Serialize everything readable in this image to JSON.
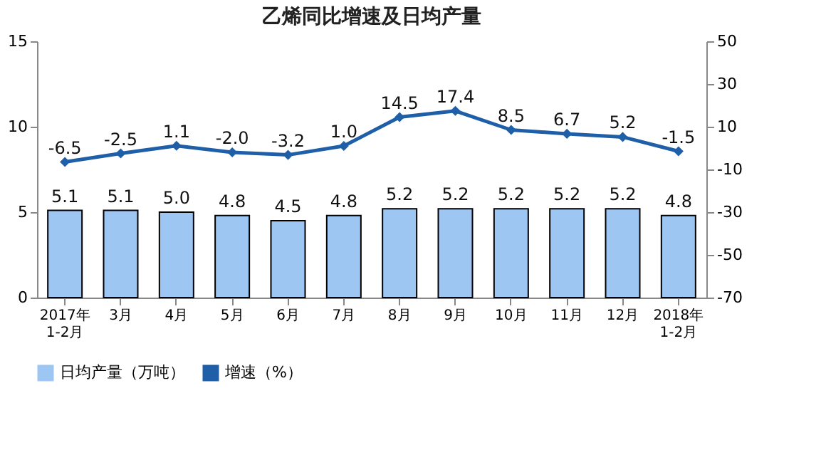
{
  "chart_data": {
    "type": "bar",
    "title": "乙烯同比增速及日均产量",
    "categories": [
      "2017年\n1-2月",
      "3月",
      "4月",
      "5月",
      "6月",
      "7月",
      "8月",
      "9月",
      "10月",
      "11月",
      "12月",
      "2018年\n1-2月"
    ],
    "series": [
      {
        "name": "日均产量（万吨）",
        "color": "#9dc6f2",
        "values": [
          5.1,
          5.1,
          5.0,
          4.8,
          4.5,
          4.8,
          5.2,
          5.2,
          5.2,
          5.2,
          5.2,
          4.8
        ],
        "value_labels": [
          "5.1",
          "5.1",
          "5.0",
          "4.8",
          "4.5",
          "4.8",
          "5.2",
          "5.2",
          "5.2",
          "5.2",
          "5.2",
          "4.8"
        ]
      },
      {
        "name": "增速（%）",
        "type": "line",
        "axis": "y2",
        "color": "#1f5fa8",
        "values": [
          -6.5,
          -2.5,
          1.1,
          -2.0,
          -3.2,
          1.0,
          14.5,
          17.4,
          8.5,
          6.7,
          5.2,
          -1.5
        ],
        "value_labels": [
          "-6.5",
          "-2.5",
          "1.1",
          "-2.0",
          "-3.2",
          "1.0",
          "14.5",
          "17.4",
          "8.5",
          "6.7",
          "5.2",
          "-1.5"
        ]
      }
    ],
    "ylim": [
      0,
      15
    ],
    "yticks": [
      0,
      5,
      10,
      15
    ],
    "y2lim": [
      -70,
      50
    ],
    "y2ticks": [
      -70,
      -50,
      -30,
      -10,
      10,
      30,
      50
    ],
    "marker": "diamond",
    "legend": "bottom",
    "grid": false
  }
}
